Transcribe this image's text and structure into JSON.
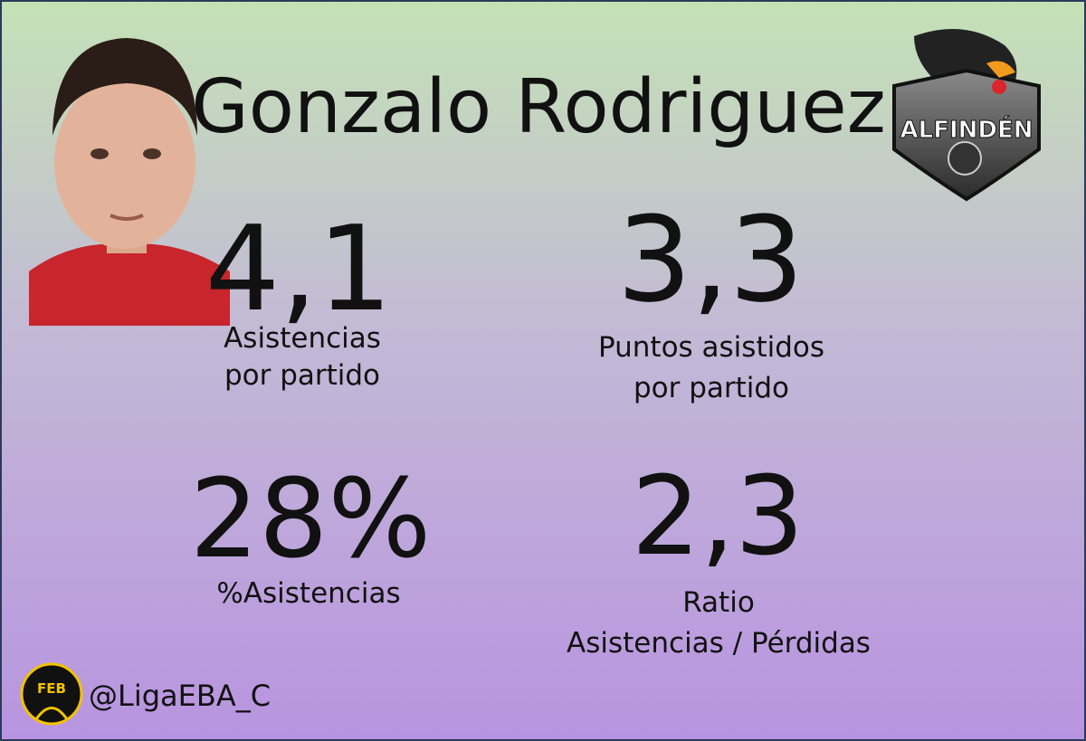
{
  "header": {
    "name": "Gonzalo Rodriguez",
    "team_logo_text": "ALFINDÉN"
  },
  "stats": [
    {
      "value": "4,1",
      "label_lines": [
        "Asistencias",
        "por partido"
      ]
    },
    {
      "value": "3,3",
      "label_lines": [
        "Puntos asistidos",
        "por partido"
      ]
    },
    {
      "value": "28%",
      "label_lines": [
        "%Asistencias"
      ]
    },
    {
      "value": "2,3",
      "label_lines": [
        "Ratio",
        "Asistencias / Pérdidas"
      ]
    }
  ],
  "footer": {
    "league_logo_text": "FEB",
    "handle": "@LigaEBA_C"
  }
}
